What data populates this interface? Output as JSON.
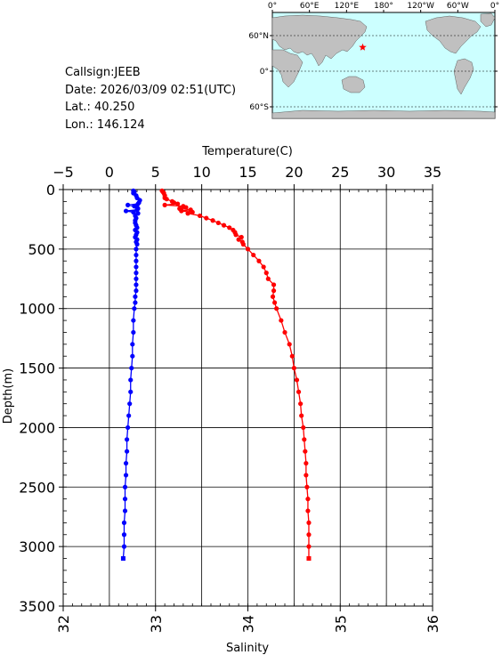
{
  "info": {
    "callsign": "Callsign:JEEB",
    "date": "Date:  2026/03/09 02:51(UTC)",
    "lat": "Lat.:  40.250",
    "lon": "Lon.:  146.124"
  },
  "map": {
    "lon_ticks": [
      "0°",
      "60°E",
      "120°E",
      "180°",
      "120°W",
      "60°W",
      "0°"
    ],
    "lat_ticks": [
      "60°N",
      "0°",
      "60°S"
    ],
    "station_lat": 40.25,
    "station_lon": 146.124,
    "ocean_color": "#ccffff",
    "land_color": "#c0c0c0",
    "marker_color": "#ff0000"
  },
  "chart_data": {
    "type": "line",
    "ylabel": "Depth(m)",
    "ylim": [
      0,
      3500
    ],
    "yticks": [
      "0",
      "500",
      "1000",
      "1500",
      "2000",
      "2500",
      "3000",
      "3500"
    ],
    "temperature_axis": {
      "label": "Temperature(C)",
      "range": [
        -5,
        35
      ],
      "ticks": [
        "−5",
        "0",
        "5",
        "10",
        "15",
        "20",
        "25",
        "30",
        "35"
      ],
      "position": "top"
    },
    "salinity_axis": {
      "label": "Salinity",
      "range": [
        32,
        36
      ],
      "ticks": [
        "32",
        "33",
        "34",
        "35",
        "36"
      ],
      "position": "bottom"
    },
    "grid": true,
    "series": [
      {
        "axis": "temperature",
        "color": "#0000ff",
        "depth": [
          10,
          20,
          30,
          50,
          70,
          90,
          110,
          120,
          130,
          140,
          150,
          160,
          170,
          180,
          190,
          200,
          220,
          240,
          260,
          280,
          300,
          320,
          340,
          360,
          380,
          400,
          420,
          440,
          460,
          500,
          550,
          600,
          650,
          700,
          750,
          800,
          850,
          900,
          950,
          1000,
          1100,
          1200,
          1300,
          1400,
          1500,
          1600,
          1700,
          1800,
          1900,
          2000,
          2100,
          2200,
          2300,
          2400,
          2500,
          2600,
          2700,
          2800,
          2900,
          3000,
          3100
        ],
        "values": [
          2.6,
          2.7,
          2.6,
          2.9,
          3.0,
          3.3,
          3.2,
          3.1,
          2.0,
          2.7,
          3.0,
          3.1,
          3.0,
          1.8,
          2.6,
          3.1,
          2.8,
          2.9,
          2.8,
          2.8,
          2.9,
          3.0,
          2.8,
          3.0,
          2.9,
          2.8,
          3.0,
          2.9,
          3.0,
          2.9,
          2.9,
          2.9,
          2.9,
          2.9,
          2.9,
          2.9,
          2.9,
          2.8,
          2.8,
          2.7,
          2.6,
          2.6,
          2.5,
          2.5,
          2.4,
          2.3,
          2.3,
          2.2,
          2.1,
          2.0,
          1.9,
          1.9,
          1.8,
          1.8,
          1.7,
          1.7,
          1.7,
          1.6,
          1.6,
          1.6,
          1.5
        ]
      },
      {
        "axis": "salinity",
        "color": "#ff0000",
        "depth": [
          10,
          20,
          30,
          50,
          70,
          80,
          100,
          110,
          120,
          130,
          140,
          150,
          160,
          170,
          180,
          190,
          200,
          220,
          240,
          260,
          280,
          300,
          320,
          340,
          360,
          380,
          400,
          420,
          440,
          460,
          500,
          550,
          600,
          650,
          700,
          750,
          800,
          850,
          900,
          950,
          1000,
          1100,
          1200,
          1300,
          1400,
          1500,
          1600,
          1700,
          1800,
          1900,
          2000,
          2100,
          2200,
          2300,
          2400,
          2500,
          2600,
          2700,
          2800,
          2900,
          3000,
          3100
        ],
        "values": [
          33.07,
          33.08,
          33.09,
          33.1,
          33.1,
          33.12,
          33.18,
          33.2,
          33.24,
          33.1,
          33.3,
          33.33,
          33.26,
          33.38,
          33.28,
          33.4,
          33.35,
          33.48,
          33.55,
          33.62,
          33.68,
          33.74,
          33.8,
          33.84,
          33.86,
          33.87,
          33.93,
          33.9,
          33.94,
          33.95,
          34.0,
          34.06,
          34.12,
          34.17,
          34.2,
          34.22,
          34.28,
          34.28,
          34.27,
          34.29,
          34.31,
          34.36,
          34.4,
          34.45,
          34.48,
          34.5,
          34.53,
          34.55,
          34.57,
          34.58,
          34.6,
          34.61,
          34.62,
          34.63,
          34.63,
          34.64,
          34.65,
          34.65,
          34.66,
          34.66,
          34.66,
          34.66
        ]
      }
    ]
  }
}
